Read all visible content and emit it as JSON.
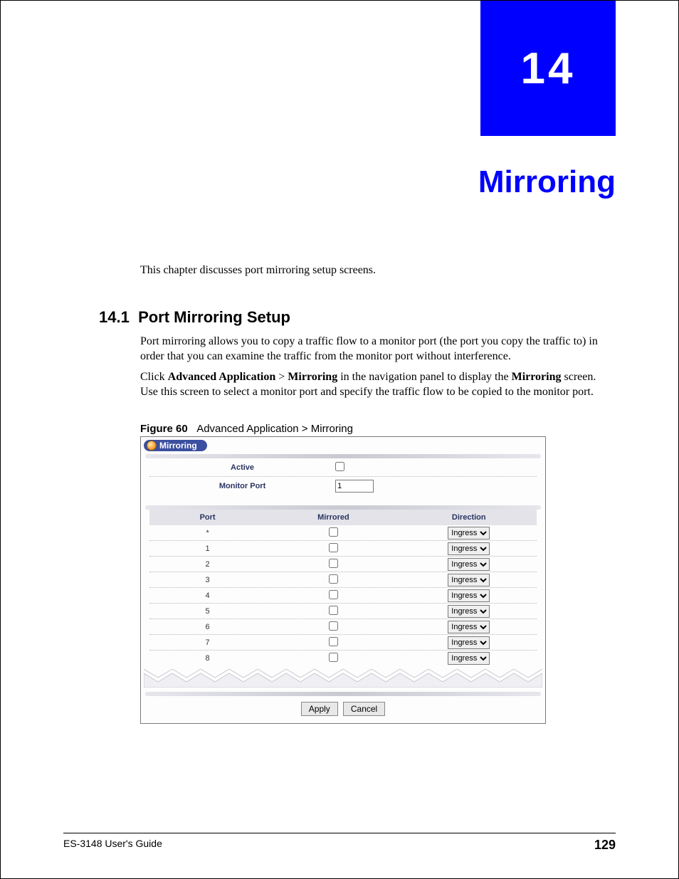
{
  "chapter": {
    "number": "14",
    "title": "Mirroring"
  },
  "intro": "This chapter discusses port mirroring setup screens.",
  "section": {
    "number": "14.1",
    "title": "Port Mirroring Setup"
  },
  "para1": "Port mirroring allows you to copy a traffic flow to a monitor port (the port you copy the traffic to) in order that you can examine the traffic from the monitor port without interference.",
  "para2_pre": "Click ",
  "para2_b1": "Advanced Application",
  "para2_mid1": " > ",
  "para2_b2": "Mirroring",
  "para2_mid2": " in the navigation panel to display the ",
  "para2_b3": "Mirroring",
  "para2_post": " screen. Use this screen to select a monitor port and specify the traffic flow to be copied to the monitor port.",
  "figure": {
    "label": "Figure 60",
    "caption": "Advanced Application > Mirroring"
  },
  "ui": {
    "pill_label": "Mirroring",
    "active_label": "Active",
    "monitor_port_label": "Monitor Port",
    "monitor_port_value": "1",
    "headers": {
      "port": "Port",
      "mirrored": "Mirrored",
      "direction": "Direction"
    },
    "direction_option": "Ingress",
    "rows": [
      {
        "port": "*"
      },
      {
        "port": "1"
      },
      {
        "port": "2"
      },
      {
        "port": "3"
      },
      {
        "port": "4"
      },
      {
        "port": "5"
      },
      {
        "port": "6"
      },
      {
        "port": "7"
      },
      {
        "port": "8"
      }
    ],
    "buttons": {
      "apply": "Apply",
      "cancel": "Cancel"
    }
  },
  "footer": {
    "guide": "ES-3148 User's Guide",
    "page": "129"
  },
  "colors": {
    "brand_blue": "#0000ff",
    "pill_blue": "#3b4fa0",
    "header_text": "#2a3560",
    "row_bg": "#e3e3e9",
    "dotted": "#b5b5c5",
    "zigzag_fill": "#f0f0f4",
    "zigzag_stroke": "#c8c8d2"
  }
}
